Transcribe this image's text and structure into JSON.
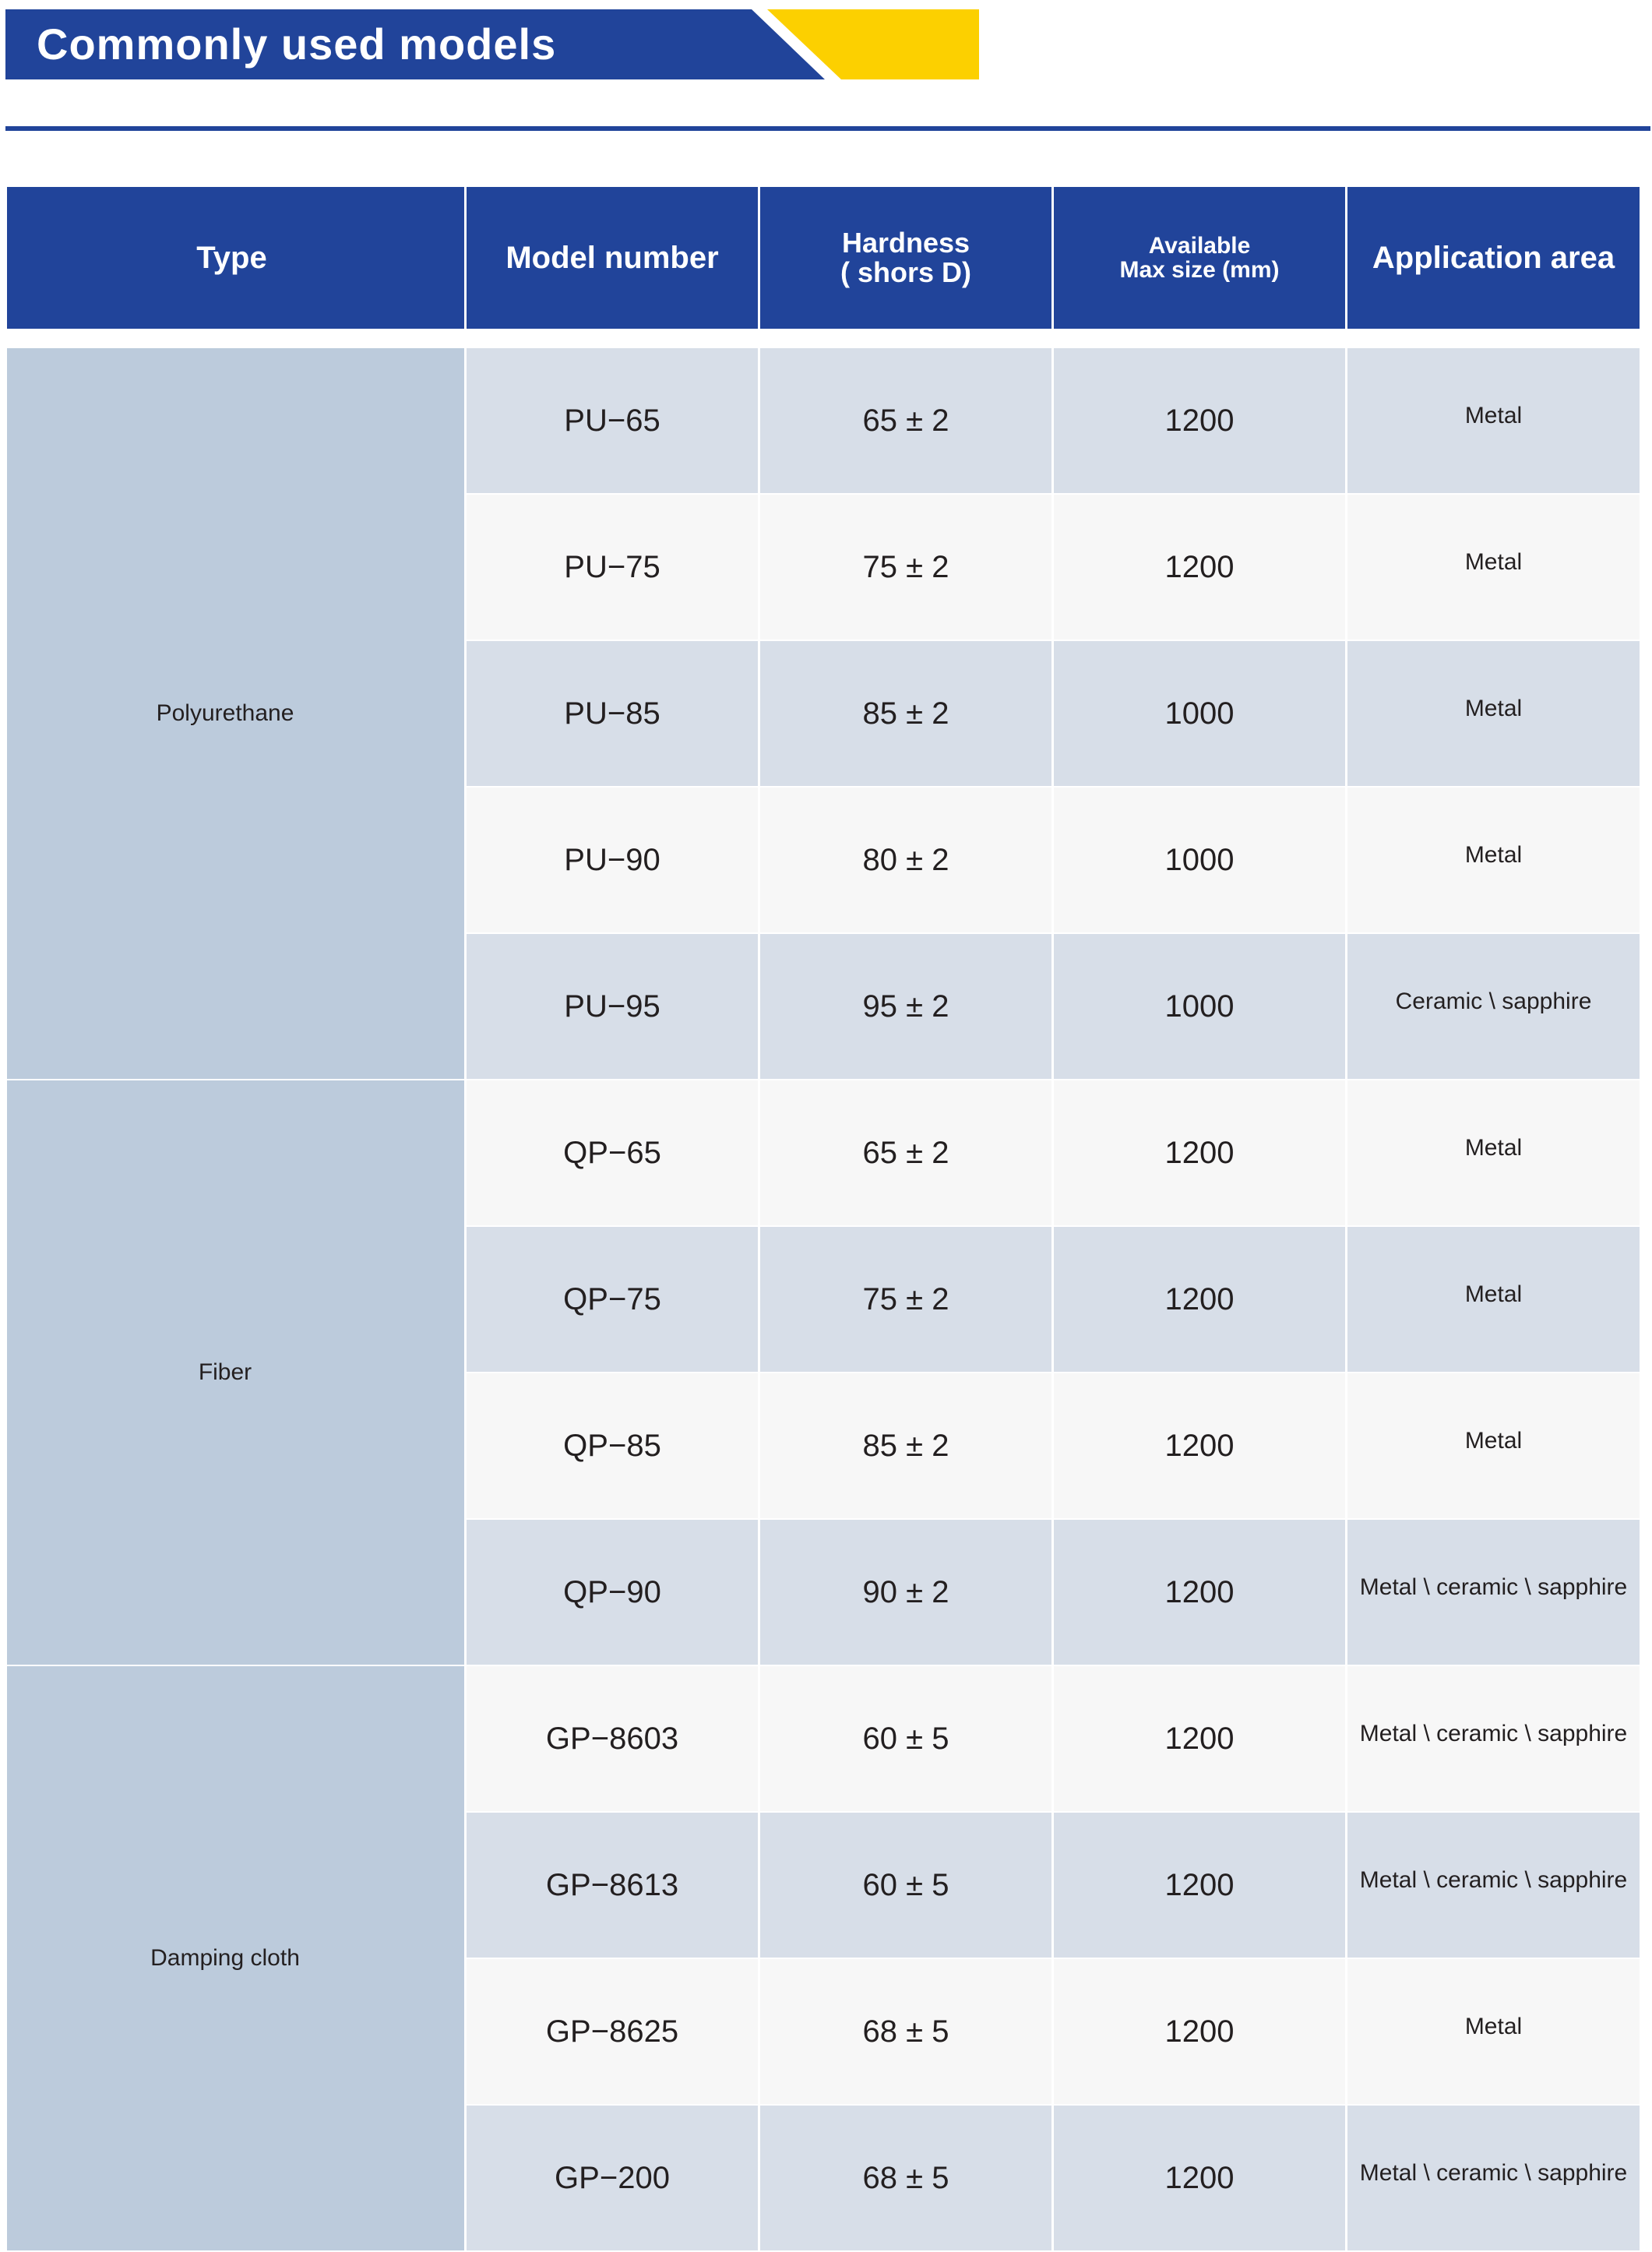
{
  "title": "Commonly used models",
  "colors": {
    "brand_blue": "#21449a",
    "accent_yellow": "#fcd000",
    "type_column": "#bccbdc",
    "row_shaded": "#d7dee8",
    "row_light": "#f7f7f7"
  },
  "columns": {
    "type": "Type",
    "model": "Model number",
    "hardness_line1": "Hardness",
    "hardness_line2": "( shors D)",
    "size_line1": "Available",
    "size_line2": "Max size (mm)",
    "application": "Application area"
  },
  "groups": [
    {
      "type": "Polyurethane",
      "rows": [
        {
          "model": "PU−65",
          "hardness": "65 ± 2",
          "size": "1200",
          "application": "Metal"
        },
        {
          "model": "PU−75",
          "hardness": "75 ± 2",
          "size": "1200",
          "application": "Metal"
        },
        {
          "model": "PU−85",
          "hardness": "85 ± 2",
          "size": "1000",
          "application": "Metal"
        },
        {
          "model": "PU−90",
          "hardness": "80 ± 2",
          "size": "1000",
          "application": "Metal"
        },
        {
          "model": "PU−95",
          "hardness": "95 ± 2",
          "size": "1000",
          "application": "Ceramic \\ sapphire"
        }
      ]
    },
    {
      "type": "Fiber",
      "rows": [
        {
          "model": "QP−65",
          "hardness": "65 ± 2",
          "size": "1200",
          "application": "Metal"
        },
        {
          "model": "QP−75",
          "hardness": "75 ± 2",
          "size": "1200",
          "application": "Metal"
        },
        {
          "model": "QP−85",
          "hardness": "85 ± 2",
          "size": "1200",
          "application": "Metal"
        },
        {
          "model": "QP−90",
          "hardness": "90 ± 2",
          "size": "1200",
          "application": "Metal \\ ceramic \\ sapphire"
        }
      ]
    },
    {
      "type": "Damping cloth",
      "rows": [
        {
          "model": "GP−8603",
          "hardness": "60 ± 5",
          "size": "1200",
          "application": "Metal \\ ceramic \\ sapphire"
        },
        {
          "model": "GP−8613",
          "hardness": "60 ± 5",
          "size": "1200",
          "application": "Metal \\ ceramic \\ sapphire"
        },
        {
          "model": "GP−8625",
          "hardness": "68 ± 5",
          "size": "1200",
          "application": "Metal"
        },
        {
          "model": "GP−200",
          "hardness": "68 ± 5",
          "size": "1200",
          "application": "Metal \\ ceramic \\ sapphire"
        }
      ]
    }
  ]
}
